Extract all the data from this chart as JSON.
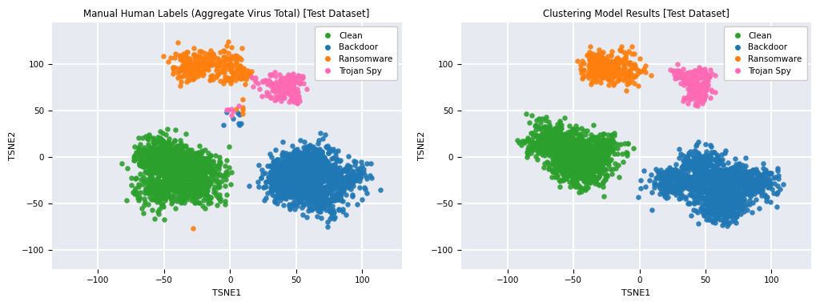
{
  "title_left": "Manual Human Labels (Aggregate Virus Total) [Test Dataset]",
  "title_right": "Clustering Model Results [Test Dataset]",
  "xlabel": "TSNE1",
  "ylabel": "TSNE2",
  "xlim": [
    -135,
    130
  ],
  "ylim": [
    -120,
    145
  ],
  "bg_color": "#e8eaf2",
  "grid_color": "white",
  "categories": [
    "Clean",
    "Backdoor",
    "Ransomware",
    "Trojan Spy"
  ],
  "colors": [
    "#2ca02c",
    "#1f77b4",
    "#ff7f0e",
    "#ff69b4"
  ],
  "marker_size": 22,
  "alpha": 0.9,
  "seed": 42,
  "n_clean": 1400,
  "n_backdoor": 1400,
  "n_ransomware": 280,
  "n_trojan": 180,
  "figsize": [
    10.24,
    3.82
  ],
  "dpi": 100
}
